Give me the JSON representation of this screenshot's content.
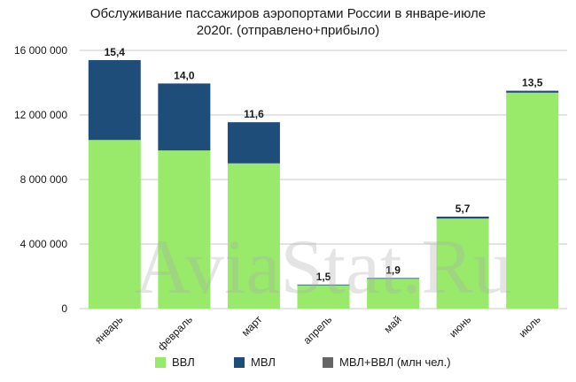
{
  "chart_data": {
    "type": "bar",
    "stacked": true,
    "title": "Обслуживание пассажиров аэропортами России в январе-июле",
    "subtitle": "2020г. (отправлено+прибыло)",
    "categories": [
      "январь",
      "февраль",
      "март",
      "апрель",
      "май",
      "июнь",
      "июль"
    ],
    "series": [
      {
        "name": "ВВЛ",
        "color": "#99ea6b",
        "values": [
          10450000,
          9800000,
          9000000,
          1450000,
          1850000,
          5580000,
          13380000
        ]
      },
      {
        "name": "МВЛ",
        "color": "#1f4d7a",
        "values": [
          4950000,
          4150000,
          2550000,
          40000,
          45000,
          120000,
          120000
        ]
      }
    ],
    "totals_series_name": "МВЛ+ВВЛ (млн чел.)",
    "totals_series_color": "#666666",
    "data_labels": [
      "15,4",
      "14,0",
      "11,6",
      "1,5",
      "1,9",
      "5,7",
      "13,5"
    ],
    "yticks": [
      0,
      4000000,
      8000000,
      12000000,
      16000000
    ],
    "ytick_labels": [
      "0",
      "4 000 000",
      "8 000 000",
      "12 000 000",
      "16 000 000"
    ],
    "ylim": [
      0,
      16000000
    ],
    "grid": true,
    "legend_position": "bottom"
  },
  "watermark": "AviaStat.Ru"
}
